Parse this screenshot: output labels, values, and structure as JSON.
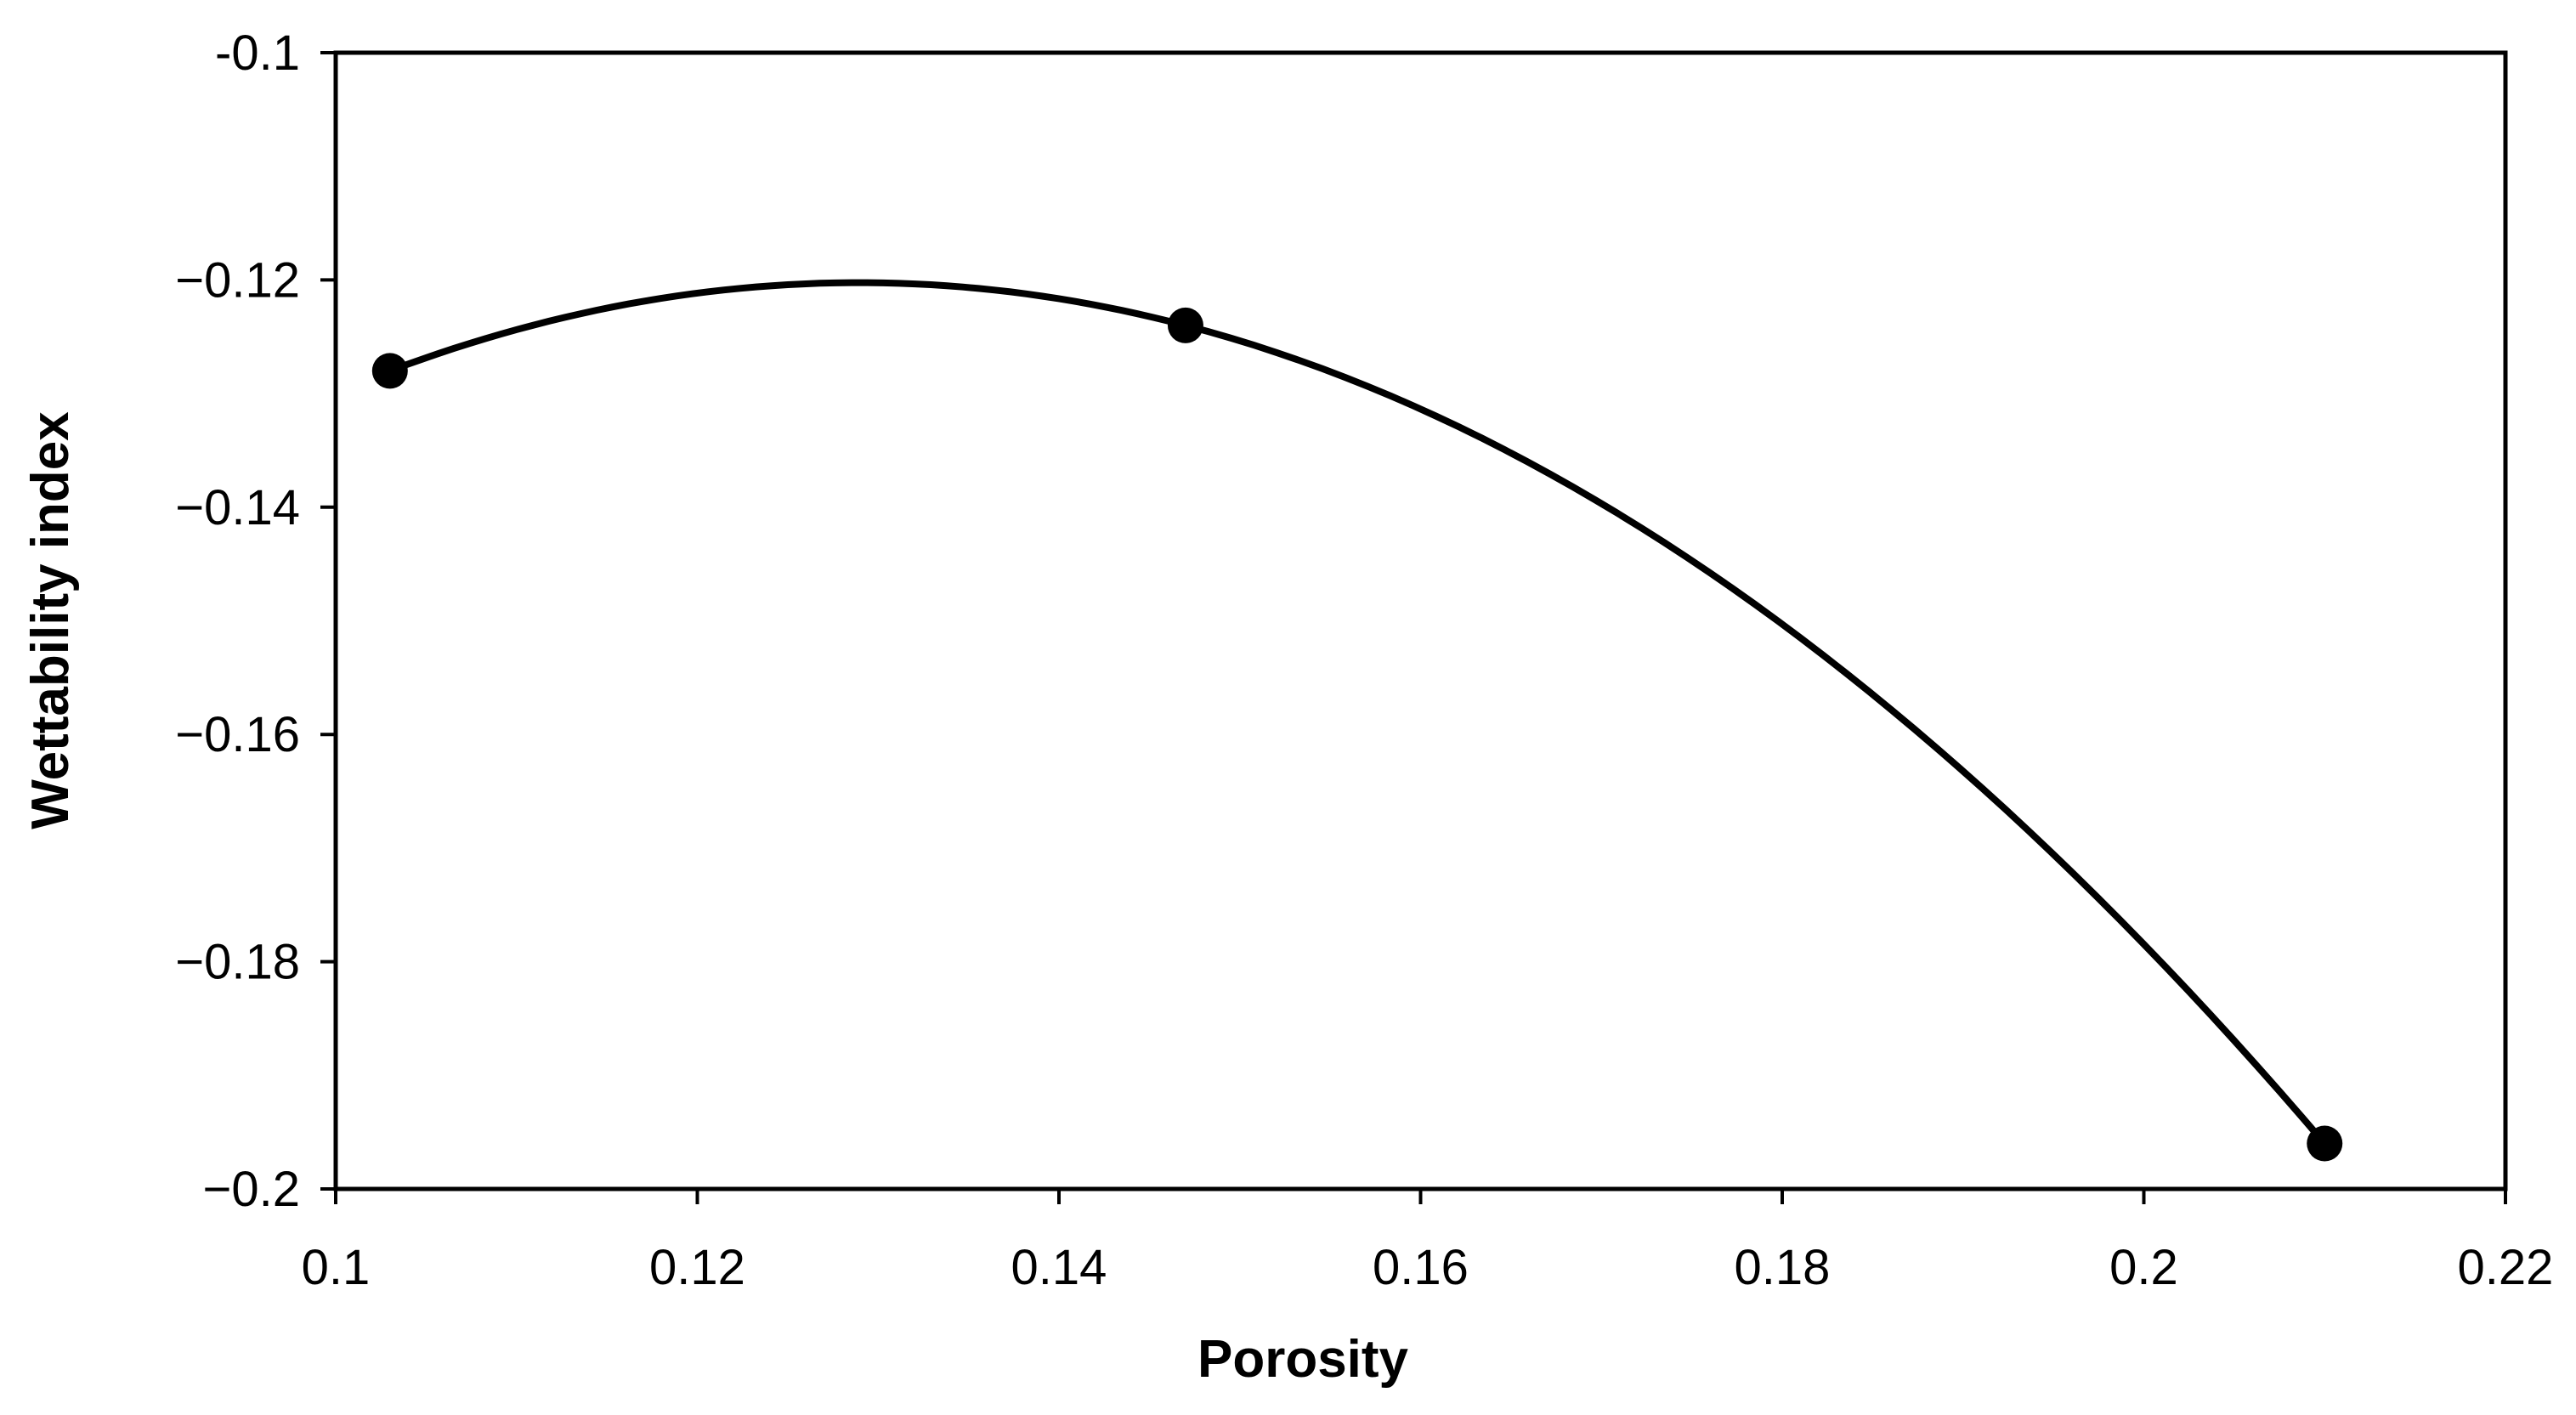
{
  "chart_data": {
    "type": "line",
    "xlabel": "Porosity",
    "ylabel": "Wettability index",
    "xlim": [
      0.1,
      0.22
    ],
    "ylim": [
      -0.2,
      -0.1
    ],
    "x_ticks": [
      "0.1",
      "0.12",
      "0.14",
      "0.16",
      "0.18",
      "0.2",
      "0.22"
    ],
    "y_ticks": [
      "-0.1",
      "−0.12",
      "−0.14",
      "−0.16",
      "−0.18",
      "−0.2"
    ],
    "smooth": true,
    "grid": false,
    "legend": "none",
    "series": [
      {
        "x": [
          0.103,
          0.147,
          0.21
        ],
        "y": [
          -0.128,
          -0.124,
          -0.196
        ]
      }
    ],
    "line_color": "#000000",
    "marker_color": "#000000"
  }
}
